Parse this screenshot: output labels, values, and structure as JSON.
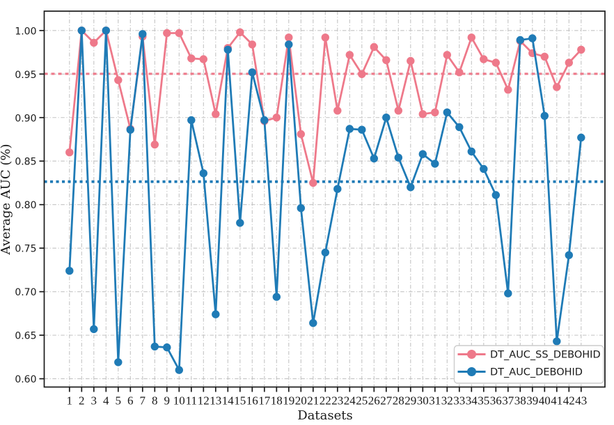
{
  "chart_data": {
    "type": "line",
    "title": "",
    "xlabel": "Datasets",
    "ylabel": "Average AUC (%)",
    "x": [
      1,
      2,
      3,
      4,
      5,
      6,
      7,
      8,
      9,
      10,
      11,
      12,
      13,
      14,
      15,
      16,
      17,
      18,
      19,
      20,
      21,
      22,
      23,
      24,
      25,
      26,
      27,
      28,
      29,
      30,
      31,
      32,
      33,
      34,
      35,
      36,
      37,
      38,
      39,
      40,
      41,
      42,
      43
    ],
    "series": [
      {
        "name": "DT_AUC_SS_DEBOHID",
        "color": "#ee798a",
        "marker": "circle",
        "values": [
          0.86,
          1.0,
          0.986,
          1.0,
          0.943,
          0.887,
          0.993,
          0.869,
          0.997,
          0.997,
          0.968,
          0.967,
          0.904,
          0.98,
          0.998,
          0.984,
          0.896,
          0.9,
          0.992,
          0.881,
          0.825,
          0.992,
          0.908,
          0.972,
          0.95,
          0.981,
          0.966,
          0.908,
          0.965,
          0.904,
          0.906,
          0.972,
          0.952,
          0.992,
          0.967,
          0.963,
          0.932,
          0.988,
          0.974,
          0.97,
          0.935,
          0.963,
          0.978
        ],
        "mean_value": 0.9503,
        "mean_line_style": "dashed"
      },
      {
        "name": "DT_AUC_DEBOHID",
        "color": "#1f7bb6",
        "marker": "circle",
        "values": [
          0.724,
          1.0,
          0.657,
          1.0,
          0.619,
          0.886,
          0.996,
          0.637,
          0.636,
          0.61,
          0.897,
          0.836,
          0.674,
          0.978,
          0.779,
          0.952,
          0.897,
          0.694,
          0.984,
          0.796,
          0.664,
          0.745,
          0.818,
          0.887,
          0.886,
          0.853,
          0.9,
          0.854,
          0.82,
          0.858,
          0.847,
          0.906,
          0.889,
          0.861,
          0.841,
          0.811,
          0.698,
          0.989,
          0.991,
          0.902,
          0.643,
          0.742,
          0.877
        ],
        "mean_value": 0.8264,
        "mean_line_style": "dotted"
      }
    ],
    "yticks": [
      "1.00",
      "0.95",
      "0.90",
      "0.85",
      "0.80",
      "0.75",
      "0.70",
      "0.65",
      "0.60"
    ],
    "ytick_values": [
      1.0,
      0.95,
      0.9,
      0.85,
      0.8,
      0.75,
      0.7,
      0.65,
      0.6
    ],
    "ylim": [
      0.5905,
      1.0222
    ],
    "xlim_labels": [
      1,
      43
    ],
    "grid": "dash-dot gridlines on both axes",
    "grid_color": "#c4c4c4",
    "legend_position": "lower right",
    "background_color": "#ffffff",
    "spine_color": "#1a1a1a"
  },
  "legend": {
    "items": [
      {
        "label": "DT_AUC_SS_DEBOHID",
        "color": "#ee798a"
      },
      {
        "label": "DT_AUC_DEBOHID",
        "color": "#1f7bb6"
      }
    ]
  }
}
